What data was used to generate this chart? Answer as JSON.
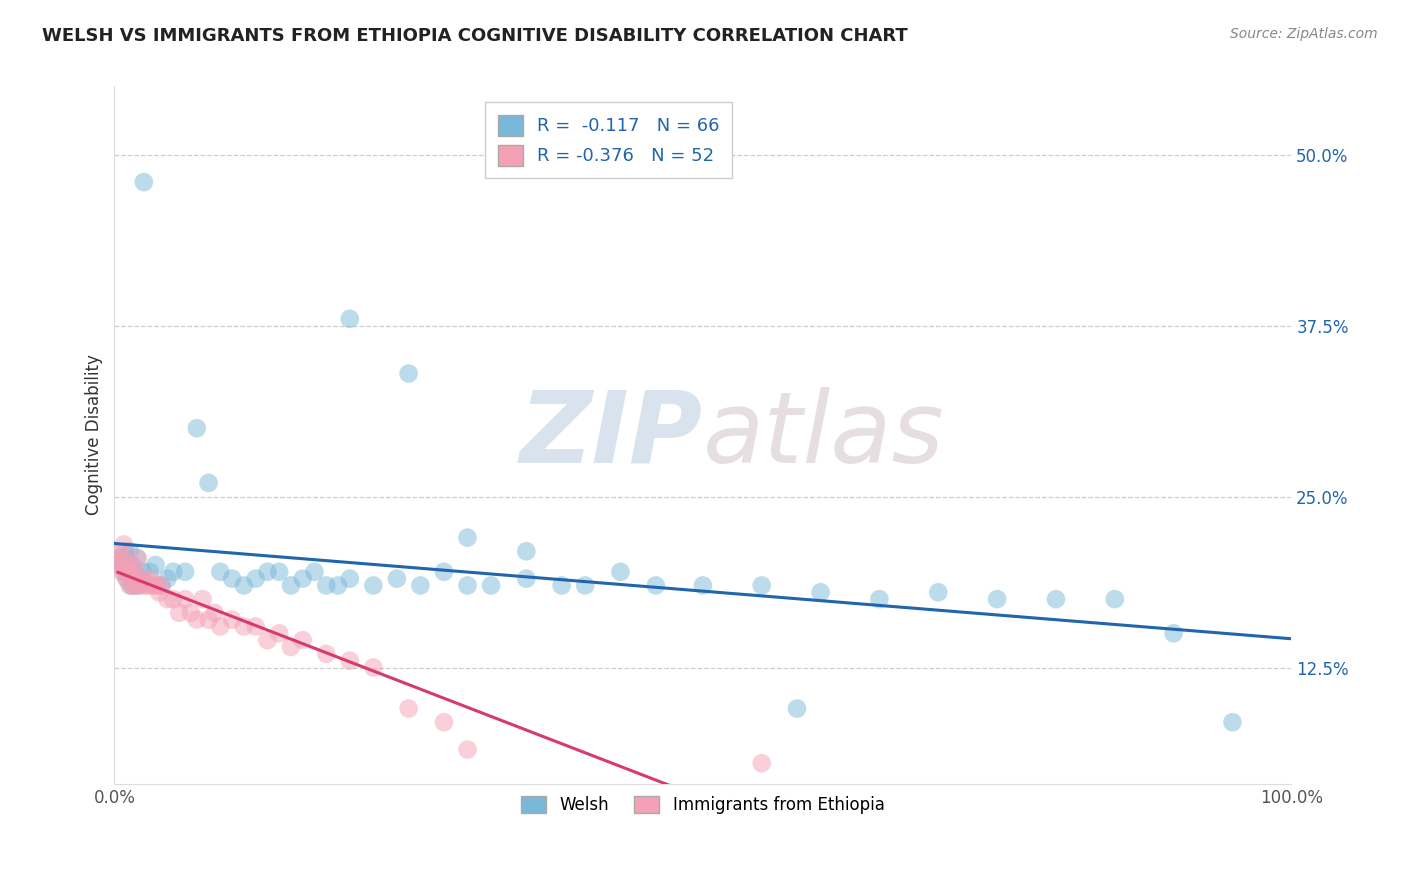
{
  "title": "WELSH VS IMMIGRANTS FROM ETHIOPIA COGNITIVE DISABILITY CORRELATION CHART",
  "source": "Source: ZipAtlas.com",
  "ylabel": "Cognitive Disability",
  "xlim": [
    0.0,
    1.0
  ],
  "ylim": [
    0.04,
    0.55
  ],
  "yticks": [
    0.125,
    0.25,
    0.375,
    0.5
  ],
  "ytick_labels": [
    "12.5%",
    "25.0%",
    "37.5%",
    "50.0%"
  ],
  "xticks": [
    0.0,
    1.0
  ],
  "xtick_labels": [
    "0.0%",
    "100.0%"
  ],
  "welsh_color": "#7ab8d9",
  "ethiopia_color": "#f4a0b5",
  "welsh_R": -0.117,
  "welsh_N": 66,
  "ethiopia_R": -0.376,
  "ethiopia_N": 52,
  "trend_welsh_color": "#2166ac",
  "trend_ethiopia_color": "#d63b6e",
  "watermark_zip": "ZIP",
  "watermark_atlas": "atlas",
  "legend_label1": "Welsh",
  "legend_label2": "Immigrants from Ethiopia",
  "welsh_x": [
    0.005,
    0.007,
    0.008,
    0.009,
    0.01,
    0.01,
    0.011,
    0.012,
    0.013,
    0.014,
    0.015,
    0.015,
    0.016,
    0.017,
    0.018,
    0.019,
    0.02,
    0.022,
    0.024,
    0.025,
    0.03,
    0.035,
    0.04,
    0.045,
    0.05,
    0.06,
    0.07,
    0.08,
    0.09,
    0.1,
    0.11,
    0.12,
    0.13,
    0.14,
    0.15,
    0.16,
    0.17,
    0.18,
    0.19,
    0.2,
    0.22,
    0.24,
    0.26,
    0.28,
    0.3,
    0.32,
    0.35,
    0.38,
    0.4,
    0.43,
    0.46,
    0.5,
    0.55,
    0.6,
    0.65,
    0.7,
    0.75,
    0.8,
    0.85,
    0.9,
    0.2,
    0.25,
    0.3,
    0.35,
    0.58,
    0.95
  ],
  "welsh_y": [
    0.205,
    0.2,
    0.195,
    0.21,
    0.19,
    0.205,
    0.2,
    0.195,
    0.21,
    0.185,
    0.195,
    0.2,
    0.185,
    0.195,
    0.19,
    0.205,
    0.185,
    0.19,
    0.195,
    0.48,
    0.195,
    0.2,
    0.185,
    0.19,
    0.195,
    0.195,
    0.3,
    0.26,
    0.195,
    0.19,
    0.185,
    0.19,
    0.195,
    0.195,
    0.185,
    0.19,
    0.195,
    0.185,
    0.185,
    0.19,
    0.185,
    0.19,
    0.185,
    0.195,
    0.185,
    0.185,
    0.19,
    0.185,
    0.185,
    0.195,
    0.185,
    0.185,
    0.185,
    0.18,
    0.175,
    0.18,
    0.175,
    0.175,
    0.175,
    0.15,
    0.38,
    0.34,
    0.22,
    0.21,
    0.095,
    0.085
  ],
  "ethiopia_x": [
    0.003,
    0.004,
    0.005,
    0.006,
    0.007,
    0.008,
    0.009,
    0.01,
    0.011,
    0.012,
    0.013,
    0.014,
    0.015,
    0.016,
    0.017,
    0.018,
    0.019,
    0.02,
    0.022,
    0.024,
    0.026,
    0.028,
    0.03,
    0.032,
    0.034,
    0.036,
    0.038,
    0.04,
    0.045,
    0.05,
    0.055,
    0.06,
    0.065,
    0.07,
    0.075,
    0.08,
    0.085,
    0.09,
    0.1,
    0.11,
    0.12,
    0.13,
    0.14,
    0.15,
    0.16,
    0.18,
    0.2,
    0.22,
    0.25,
    0.28,
    0.3,
    0.55
  ],
  "ethiopia_y": [
    0.205,
    0.21,
    0.2,
    0.195,
    0.205,
    0.215,
    0.195,
    0.2,
    0.19,
    0.195,
    0.185,
    0.195,
    0.2,
    0.185,
    0.195,
    0.19,
    0.185,
    0.205,
    0.185,
    0.19,
    0.185,
    0.185,
    0.19,
    0.185,
    0.185,
    0.185,
    0.18,
    0.185,
    0.175,
    0.175,
    0.165,
    0.175,
    0.165,
    0.16,
    0.175,
    0.16,
    0.165,
    0.155,
    0.16,
    0.155,
    0.155,
    0.145,
    0.15,
    0.14,
    0.145,
    0.135,
    0.13,
    0.125,
    0.095,
    0.085,
    0.065,
    0.055
  ]
}
